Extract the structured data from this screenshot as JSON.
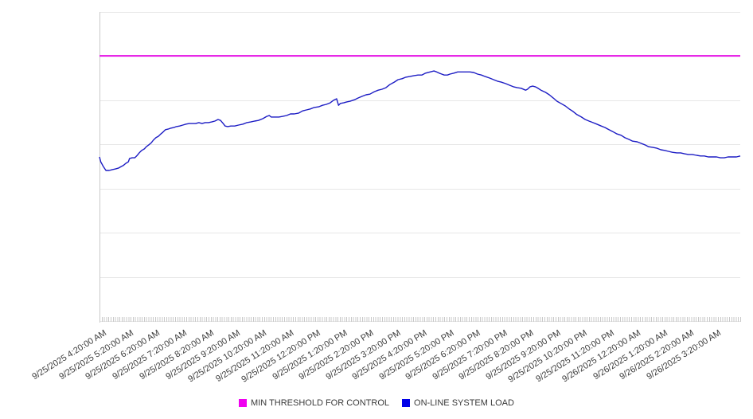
{
  "chart_data": {
    "type": "line",
    "title": "",
    "x_axis": {
      "start": "9/25/2025 4:20:00 AM",
      "end": "9/26/2025 4:20:00 AM",
      "major_tick_interval": "1 hour",
      "minor_tick_interval_minutes": 5,
      "tick_labels": [
        "9/25/2025 4:20:00 AM",
        "9/25/2025 5:20:00 AM",
        "9/25/2025 6:20:00 AM",
        "9/25/2025 7:20:00 AM",
        "9/25/2025 8:20:00 AM",
        "9/25/2025 9:20:00 AM",
        "9/25/2025 10:20:00 AM",
        "9/25/2025 11:20:00 AM",
        "9/25/2025 12:20:00 PM",
        "9/25/2025 1:20:00 PM",
        "9/25/2025 2:20:00 PM",
        "9/25/2025 3:20:00 PM",
        "9/25/2025 4:20:00 PM",
        "9/25/2025 5:20:00 PM",
        "9/25/2025 6:20:00 PM",
        "9/25/2025 7:20:00 PM",
        "9/25/2025 8:20:00 PM",
        "9/25/2025 9:20:00 PM",
        "9/25/2025 10:20:00 PM",
        "9/25/2025 11:20:00 PM",
        "9/26/2025 12:20:00 AM",
        "9/26/2025 1:20:00 AM",
        "9/26/2025 2:20:00 AM",
        "9/26/2025 3:20:00 AM"
      ]
    },
    "y_axis": {
      "labels_visible": false,
      "units": "unlabeled (no y-axis tick labels shown)",
      "range": [
        0,
        1
      ],
      "gridline_count": 8,
      "grid_on": true
    },
    "legend_position": "bottom-center",
    "series": [
      {
        "name": "MIN THRESHOLD FOR CONTROL",
        "type": "horizontal-threshold",
        "color": "#e511e5",
        "stroke_width": 2,
        "value": 0.858
      },
      {
        "name": "ON-LINE SYSTEM LOAD",
        "type": "line",
        "color": "#1c1cc4",
        "stroke_width": 1.4,
        "x_is_fraction_of_24h_window": true,
        "y_is_fraction_of_plot_height": true,
        "points": [
          [
            0.0,
            0.531
          ],
          [
            0.002,
            0.515
          ],
          [
            0.006,
            0.5
          ],
          [
            0.01,
            0.487
          ],
          [
            0.015,
            0.487
          ],
          [
            0.02,
            0.49
          ],
          [
            0.025,
            0.492
          ],
          [
            0.03,
            0.495
          ],
          [
            0.034,
            0.5
          ],
          [
            0.037,
            0.503
          ],
          [
            0.041,
            0.51
          ],
          [
            0.045,
            0.515
          ],
          [
            0.047,
            0.526
          ],
          [
            0.051,
            0.528
          ],
          [
            0.055,
            0.528
          ],
          [
            0.058,
            0.534
          ],
          [
            0.062,
            0.544
          ],
          [
            0.066,
            0.552
          ],
          [
            0.07,
            0.557
          ],
          [
            0.073,
            0.564
          ],
          [
            0.077,
            0.57
          ],
          [
            0.081,
            0.577
          ],
          [
            0.084,
            0.585
          ],
          [
            0.088,
            0.593
          ],
          [
            0.092,
            0.598
          ],
          [
            0.096,
            0.606
          ],
          [
            0.099,
            0.611
          ],
          [
            0.103,
            0.619
          ],
          [
            0.107,
            0.621
          ],
          [
            0.111,
            0.624
          ],
          [
            0.116,
            0.626
          ],
          [
            0.12,
            0.629
          ],
          [
            0.125,
            0.631
          ],
          [
            0.13,
            0.634
          ],
          [
            0.135,
            0.637
          ],
          [
            0.14,
            0.639
          ],
          [
            0.145,
            0.639
          ],
          [
            0.15,
            0.639
          ],
          [
            0.155,
            0.642
          ],
          [
            0.16,
            0.639
          ],
          [
            0.165,
            0.642
          ],
          [
            0.17,
            0.642
          ],
          [
            0.175,
            0.644
          ],
          [
            0.18,
            0.647
          ],
          [
            0.185,
            0.652
          ],
          [
            0.189,
            0.649
          ],
          [
            0.193,
            0.639
          ],
          [
            0.196,
            0.631
          ],
          [
            0.2,
            0.629
          ],
          [
            0.205,
            0.631
          ],
          [
            0.211,
            0.631
          ],
          [
            0.217,
            0.634
          ],
          [
            0.224,
            0.637
          ],
          [
            0.23,
            0.642
          ],
          [
            0.236,
            0.644
          ],
          [
            0.242,
            0.647
          ],
          [
            0.248,
            0.649
          ],
          [
            0.255,
            0.655
          ],
          [
            0.261,
            0.662
          ],
          [
            0.265,
            0.665
          ],
          [
            0.268,
            0.66
          ],
          [
            0.273,
            0.66
          ],
          [
            0.28,
            0.66
          ],
          [
            0.286,
            0.662
          ],
          [
            0.292,
            0.665
          ],
          [
            0.298,
            0.67
          ],
          [
            0.304,
            0.67
          ],
          [
            0.311,
            0.673
          ],
          [
            0.317,
            0.68
          ],
          [
            0.323,
            0.683
          ],
          [
            0.329,
            0.686
          ],
          [
            0.335,
            0.691
          ],
          [
            0.342,
            0.693
          ],
          [
            0.348,
            0.698
          ],
          [
            0.354,
            0.701
          ],
          [
            0.36,
            0.706
          ],
          [
            0.365,
            0.714
          ],
          [
            0.37,
            0.719
          ],
          [
            0.373,
            0.698
          ],
          [
            0.376,
            0.704
          ],
          [
            0.381,
            0.706
          ],
          [
            0.386,
            0.709
          ],
          [
            0.391,
            0.711
          ],
          [
            0.398,
            0.716
          ],
          [
            0.404,
            0.722
          ],
          [
            0.41,
            0.727
          ],
          [
            0.416,
            0.732
          ],
          [
            0.422,
            0.734
          ],
          [
            0.429,
            0.742
          ],
          [
            0.435,
            0.747
          ],
          [
            0.441,
            0.75
          ],
          [
            0.447,
            0.755
          ],
          [
            0.453,
            0.765
          ],
          [
            0.46,
            0.773
          ],
          [
            0.466,
            0.781
          ],
          [
            0.472,
            0.784
          ],
          [
            0.478,
            0.789
          ],
          [
            0.484,
            0.791
          ],
          [
            0.491,
            0.794
          ],
          [
            0.497,
            0.796
          ],
          [
            0.503,
            0.796
          ],
          [
            0.509,
            0.802
          ],
          [
            0.516,
            0.806
          ],
          [
            0.522,
            0.809
          ],
          [
            0.525,
            0.807
          ],
          [
            0.53,
            0.802
          ],
          [
            0.534,
            0.799
          ],
          [
            0.538,
            0.796
          ],
          [
            0.543,
            0.796
          ],
          [
            0.547,
            0.799
          ],
          [
            0.553,
            0.802
          ],
          [
            0.559,
            0.806
          ],
          [
            0.565,
            0.806
          ],
          [
            0.571,
            0.806
          ],
          [
            0.578,
            0.806
          ],
          [
            0.584,
            0.804
          ],
          [
            0.59,
            0.799
          ],
          [
            0.596,
            0.796
          ],
          [
            0.602,
            0.791
          ],
          [
            0.609,
            0.786
          ],
          [
            0.615,
            0.781
          ],
          [
            0.621,
            0.776
          ],
          [
            0.627,
            0.773
          ],
          [
            0.634,
            0.768
          ],
          [
            0.64,
            0.763
          ],
          [
            0.646,
            0.758
          ],
          [
            0.652,
            0.755
          ],
          [
            0.658,
            0.753
          ],
          [
            0.665,
            0.747
          ],
          [
            0.668,
            0.75
          ],
          [
            0.672,
            0.758
          ],
          [
            0.676,
            0.76
          ],
          [
            0.68,
            0.758
          ],
          [
            0.683,
            0.755
          ],
          [
            0.689,
            0.747
          ],
          [
            0.696,
            0.74
          ],
          [
            0.702,
            0.732
          ],
          [
            0.708,
            0.722
          ],
          [
            0.714,
            0.711
          ],
          [
            0.72,
            0.704
          ],
          [
            0.727,
            0.696
          ],
          [
            0.733,
            0.686
          ],
          [
            0.739,
            0.678
          ],
          [
            0.745,
            0.668
          ],
          [
            0.752,
            0.66
          ],
          [
            0.758,
            0.652
          ],
          [
            0.764,
            0.647
          ],
          [
            0.77,
            0.642
          ],
          [
            0.776,
            0.637
          ],
          [
            0.783,
            0.631
          ],
          [
            0.789,
            0.626
          ],
          [
            0.795,
            0.619
          ],
          [
            0.801,
            0.613
          ],
          [
            0.807,
            0.606
          ],
          [
            0.814,
            0.601
          ],
          [
            0.82,
            0.593
          ],
          [
            0.826,
            0.588
          ],
          [
            0.832,
            0.582
          ],
          [
            0.839,
            0.58
          ],
          [
            0.845,
            0.575
          ],
          [
            0.851,
            0.57
          ],
          [
            0.857,
            0.564
          ],
          [
            0.863,
            0.562
          ],
          [
            0.87,
            0.559
          ],
          [
            0.876,
            0.554
          ],
          [
            0.882,
            0.552
          ],
          [
            0.888,
            0.549
          ],
          [
            0.894,
            0.546
          ],
          [
            0.901,
            0.544
          ],
          [
            0.907,
            0.544
          ],
          [
            0.913,
            0.541
          ],
          [
            0.919,
            0.539
          ],
          [
            0.925,
            0.539
          ],
          [
            0.932,
            0.536
          ],
          [
            0.938,
            0.534
          ],
          [
            0.944,
            0.534
          ],
          [
            0.95,
            0.531
          ],
          [
            0.957,
            0.531
          ],
          [
            0.963,
            0.531
          ],
          [
            0.969,
            0.528
          ],
          [
            0.975,
            0.528
          ],
          [
            0.981,
            0.531
          ],
          [
            0.988,
            0.531
          ],
          [
            0.994,
            0.531
          ],
          [
            1.0,
            0.534
          ]
        ]
      }
    ]
  },
  "legend": {
    "items": [
      {
        "label": "MIN THRESHOLD FOR CONTROL",
        "color": "#f000f0"
      },
      {
        "label": "ON-LINE SYSTEM LOAD",
        "color": "#0000e8"
      }
    ]
  },
  "colors": {
    "gridline": "#e7e7e7",
    "axis_line": "#c9c9c9",
    "minor_tick": "#c8c8c8",
    "label_text": "#3a3a3a"
  }
}
